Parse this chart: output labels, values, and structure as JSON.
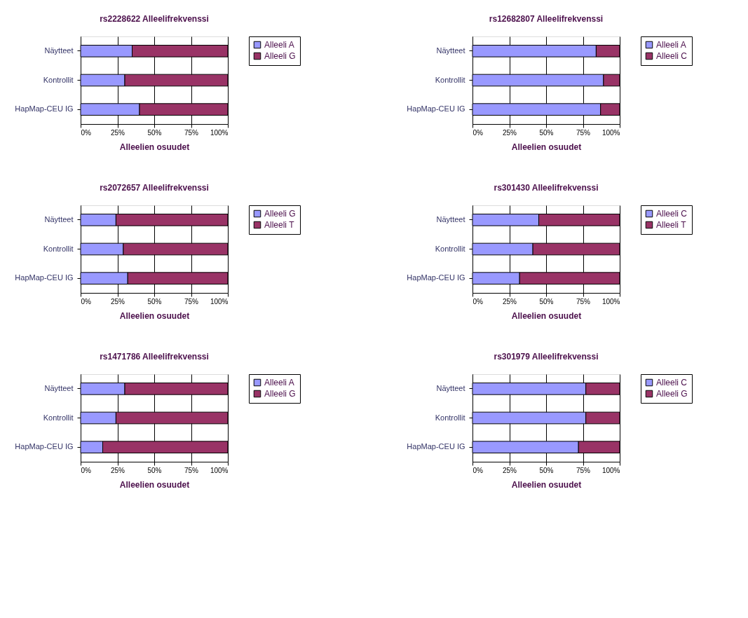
{
  "chart_data": [
    {
      "type": "bar",
      "orientation": "horizontal",
      "stacked": true,
      "title": "rs2228622 Alleelifrekvenssi",
      "xlabel": "Alleelien osuudet",
      "categories": [
        "Näytteet",
        "Kontrollit",
        "HapMap-CEU IG"
      ],
      "series": [
        {
          "name": "Alleeli A",
          "color": "#9999ff",
          "values": [
            35,
            30,
            40
          ]
        },
        {
          "name": "Alleeli G",
          "color": "#993366",
          "values": [
            65,
            70,
            60
          ]
        }
      ],
      "xlim": [
        0,
        100
      ],
      "xticks": [
        {
          "value": 0,
          "label": "0%"
        },
        {
          "value": 25,
          "label": "25%"
        },
        {
          "value": 50,
          "label": "50%"
        },
        {
          "value": 75,
          "label": "75%"
        },
        {
          "value": 100,
          "label": "100%"
        }
      ],
      "grid": "x",
      "legend": "right"
    },
    {
      "type": "bar",
      "orientation": "horizontal",
      "stacked": true,
      "title": "rs12682807 Alleelifrekvenssi",
      "xlabel": "Alleelien osuudet",
      "categories": [
        "Näytteet",
        "Kontrollit",
        "HapMap-CEU IG"
      ],
      "series": [
        {
          "name": "Alleeli A",
          "color": "#9999ff",
          "values": [
            84,
            89,
            87
          ]
        },
        {
          "name": "Alleeli C",
          "color": "#993366",
          "values": [
            16,
            11,
            13
          ]
        }
      ],
      "xlim": [
        0,
        100
      ],
      "xticks": [
        {
          "value": 0,
          "label": "0%"
        },
        {
          "value": 25,
          "label": "25%"
        },
        {
          "value": 50,
          "label": "50%"
        },
        {
          "value": 75,
          "label": "75%"
        },
        {
          "value": 100,
          "label": "100%"
        }
      ],
      "grid": "x",
      "legend": "right"
    },
    {
      "type": "bar",
      "orientation": "horizontal",
      "stacked": true,
      "title": "rs2072657 Alleelifrekvenssi",
      "xlabel": "Alleelien osuudet",
      "categories": [
        "Näytteet",
        "Kontrollit",
        "HapMap-CEU IG"
      ],
      "series": [
        {
          "name": "Alleeli G",
          "color": "#9999ff",
          "values": [
            24,
            29,
            32
          ]
        },
        {
          "name": "Alleeli T",
          "color": "#993366",
          "values": [
            76,
            71,
            68
          ]
        }
      ],
      "xlim": [
        0,
        100
      ],
      "xticks": [
        {
          "value": 0,
          "label": "0%"
        },
        {
          "value": 25,
          "label": "25%"
        },
        {
          "value": 50,
          "label": "50%"
        },
        {
          "value": 75,
          "label": "75%"
        },
        {
          "value": 100,
          "label": "100%"
        }
      ],
      "grid": "x",
      "legend": "right"
    },
    {
      "type": "bar",
      "orientation": "horizontal",
      "stacked": true,
      "title": "rs301430 Alleelifrekvenssi",
      "xlabel": "Alleelien osuudet",
      "categories": [
        "Näytteet",
        "Kontrollit",
        "HapMap-CEU IG"
      ],
      "series": [
        {
          "name": "Alleeli C",
          "color": "#9999ff",
          "values": [
            45,
            41,
            32
          ]
        },
        {
          "name": "Alleeli T",
          "color": "#993366",
          "values": [
            55,
            59,
            68
          ]
        }
      ],
      "xlim": [
        0,
        100
      ],
      "xticks": [
        {
          "value": 0,
          "label": "0%"
        },
        {
          "value": 25,
          "label": "25%"
        },
        {
          "value": 50,
          "label": "50%"
        },
        {
          "value": 75,
          "label": "75%"
        },
        {
          "value": 100,
          "label": "100%"
        }
      ],
      "grid": "x",
      "legend": "right"
    },
    {
      "type": "bar",
      "orientation": "horizontal",
      "stacked": true,
      "title": "rs1471786 Alleelifrekvenssi",
      "xlabel": "Alleelien osuudet",
      "categories": [
        "Näytteet",
        "Kontrollit",
        "HapMap-CEU IG"
      ],
      "series": [
        {
          "name": "Alleeli A",
          "color": "#9999ff",
          "values": [
            30,
            24,
            15
          ]
        },
        {
          "name": "Alleeli G",
          "color": "#993366",
          "values": [
            70,
            76,
            85
          ]
        }
      ],
      "xlim": [
        0,
        100
      ],
      "xticks": [
        {
          "value": 0,
          "label": "0%"
        },
        {
          "value": 25,
          "label": "25%"
        },
        {
          "value": 50,
          "label": "50%"
        },
        {
          "value": 75,
          "label": "75%"
        },
        {
          "value": 100,
          "label": "100%"
        }
      ],
      "grid": "x",
      "legend": "right"
    },
    {
      "type": "bar",
      "orientation": "horizontal",
      "stacked": true,
      "title": "rs301979 Alleelifrekvenssi",
      "xlabel": "Alleelien osuudet",
      "categories": [
        "Näytteet",
        "Kontrollit",
        "HapMap-CEU IG"
      ],
      "series": [
        {
          "name": "Alleeli C",
          "color": "#9999ff",
          "values": [
            77,
            77,
            72
          ]
        },
        {
          "name": "Alleeli G",
          "color": "#993366",
          "values": [
            23,
            23,
            28
          ]
        }
      ],
      "xlim": [
        0,
        100
      ],
      "xticks": [
        {
          "value": 0,
          "label": "0%"
        },
        {
          "value": 25,
          "label": "25%"
        },
        {
          "value": 50,
          "label": "50%"
        },
        {
          "value": 75,
          "label": "75%"
        },
        {
          "value": 100,
          "label": "100%"
        }
      ],
      "grid": "x",
      "legend": "right"
    }
  ]
}
